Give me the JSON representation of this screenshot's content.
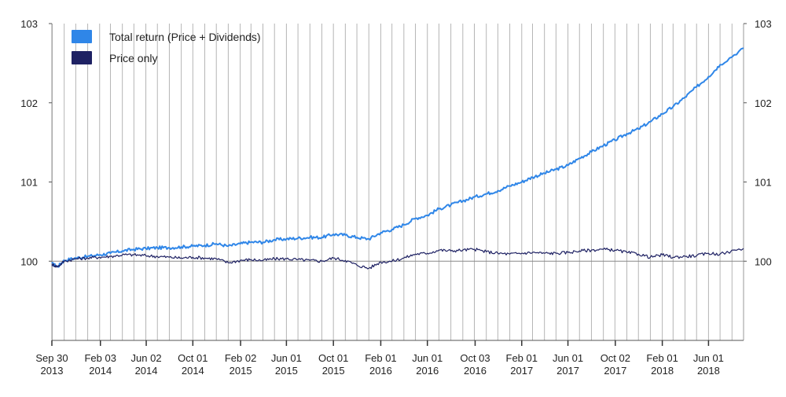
{
  "chart_data": {
    "type": "line",
    "title": "",
    "xlabel": "",
    "ylabel": "",
    "ylim": [
      99,
      103
    ],
    "y_ticks": [
      100,
      101,
      102,
      103
    ],
    "x_range": [
      "2013-09-30",
      "2018-08-31"
    ],
    "x_tick_labels": [
      {
        "date": "2013-09-30",
        "line1": "Sep 30",
        "line2": "2013"
      },
      {
        "date": "2014-02-03",
        "line1": "Feb 03",
        "line2": "2014"
      },
      {
        "date": "2014-06-02",
        "line1": "Jun 02",
        "line2": "2014"
      },
      {
        "date": "2014-10-01",
        "line1": "Oct 01",
        "line2": "2014"
      },
      {
        "date": "2015-02-02",
        "line1": "Feb 02",
        "line2": "2015"
      },
      {
        "date": "2015-06-01",
        "line1": "Jun 01",
        "line2": "2015"
      },
      {
        "date": "2015-10-01",
        "line1": "Oct 01",
        "line2": "2015"
      },
      {
        "date": "2016-02-01",
        "line1": "Feb 01",
        "line2": "2016"
      },
      {
        "date": "2016-06-01",
        "line1": "Jun 01",
        "line2": "2016"
      },
      {
        "date": "2016-10-03",
        "line1": "Oct 03",
        "line2": "2016"
      },
      {
        "date": "2017-02-01",
        "line1": "Feb 01",
        "line2": "2017"
      },
      {
        "date": "2017-06-01",
        "line1": "Jun 01",
        "line2": "2017"
      },
      {
        "date": "2017-10-02",
        "line1": "Oct 02",
        "line2": "2017"
      },
      {
        "date": "2018-02-01",
        "line1": "Feb 01",
        "line2": "2018"
      },
      {
        "date": "2018-06-01",
        "line1": "Jun 01",
        "line2": "2018"
      }
    ],
    "grid": "vertical-monthly",
    "legend_position": "top-left",
    "series": [
      {
        "name": "Total return (Price + Dividends)",
        "color": "#2f86e8",
        "points": [
          [
            "2013-09-30",
            99.97
          ],
          [
            "2013-10-15",
            99.93
          ],
          [
            "2013-11-01",
            100.01
          ],
          [
            "2013-12-01",
            100.04
          ],
          [
            "2014-01-01",
            100.06
          ],
          [
            "2014-02-01",
            100.08
          ],
          [
            "2014-03-01",
            100.1
          ],
          [
            "2014-04-01",
            100.13
          ],
          [
            "2014-05-01",
            100.15
          ],
          [
            "2014-06-01",
            100.16
          ],
          [
            "2014-07-01",
            100.17
          ],
          [
            "2014-08-01",
            100.17
          ],
          [
            "2014-09-01",
            100.18
          ],
          [
            "2014-10-01",
            100.19
          ],
          [
            "2014-11-01",
            100.2
          ],
          [
            "2014-12-01",
            100.22
          ],
          [
            "2015-01-01",
            100.19
          ],
          [
            "2015-02-01",
            100.22
          ],
          [
            "2015-03-01",
            100.24
          ],
          [
            "2015-04-01",
            100.24
          ],
          [
            "2015-05-01",
            100.27
          ],
          [
            "2015-06-01",
            100.28
          ],
          [
            "2015-07-01",
            100.29
          ],
          [
            "2015-08-01",
            100.3
          ],
          [
            "2015-09-01",
            100.3
          ],
          [
            "2015-10-01",
            100.34
          ],
          [
            "2015-11-01",
            100.33
          ],
          [
            "2015-12-01",
            100.3
          ],
          [
            "2016-01-01",
            100.28
          ],
          [
            "2016-02-01",
            100.36
          ],
          [
            "2016-03-01",
            100.4
          ],
          [
            "2016-04-01",
            100.46
          ],
          [
            "2016-05-01",
            100.54
          ],
          [
            "2016-06-01",
            100.58
          ],
          [
            "2016-07-01",
            100.66
          ],
          [
            "2016-08-01",
            100.71
          ],
          [
            "2016-09-01",
            100.76
          ],
          [
            "2016-10-01",
            100.81
          ],
          [
            "2016-11-01",
            100.85
          ],
          [
            "2016-12-01",
            100.89
          ],
          [
            "2017-01-01",
            100.95
          ],
          [
            "2017-02-01",
            101.0
          ],
          [
            "2017-03-01",
            101.06
          ],
          [
            "2017-04-01",
            101.11
          ],
          [
            "2017-05-01",
            101.16
          ],
          [
            "2017-06-01",
            101.21
          ],
          [
            "2017-07-01",
            101.3
          ],
          [
            "2017-08-01",
            101.38
          ],
          [
            "2017-09-01",
            101.46
          ],
          [
            "2017-10-01",
            101.53
          ],
          [
            "2017-11-01",
            101.61
          ],
          [
            "2017-12-01",
            101.67
          ],
          [
            "2018-01-01",
            101.76
          ],
          [
            "2018-02-01",
            101.86
          ],
          [
            "2018-03-01",
            101.95
          ],
          [
            "2018-04-01",
            102.07
          ],
          [
            "2018-05-01",
            102.2
          ],
          [
            "2018-06-01",
            102.33
          ],
          [
            "2018-07-01",
            102.48
          ],
          [
            "2018-08-31",
            102.69
          ]
        ]
      },
      {
        "name": "Price only",
        "color": "#1e2163",
        "points": [
          [
            "2013-09-30",
            99.96
          ],
          [
            "2013-10-15",
            99.93
          ],
          [
            "2013-11-01",
            100.0
          ],
          [
            "2013-12-01",
            100.03
          ],
          [
            "2014-01-01",
            100.04
          ],
          [
            "2014-02-01",
            100.05
          ],
          [
            "2014-03-01",
            100.06
          ],
          [
            "2014-04-01",
            100.08
          ],
          [
            "2014-05-01",
            100.08
          ],
          [
            "2014-06-01",
            100.07
          ],
          [
            "2014-07-01",
            100.06
          ],
          [
            "2014-08-01",
            100.05
          ],
          [
            "2014-09-01",
            100.04
          ],
          [
            "2014-10-01",
            100.05
          ],
          [
            "2014-11-01",
            100.04
          ],
          [
            "2014-12-01",
            100.03
          ],
          [
            "2015-01-01",
            99.98
          ],
          [
            "2015-02-01",
            100.01
          ],
          [
            "2015-03-01",
            100.02
          ],
          [
            "2015-04-01",
            100.01
          ],
          [
            "2015-05-01",
            100.03
          ],
          [
            "2015-06-01",
            100.03
          ],
          [
            "2015-07-01",
            100.02
          ],
          [
            "2015-08-01",
            100.01
          ],
          [
            "2015-09-01",
            100.0
          ],
          [
            "2015-10-01",
            100.04
          ],
          [
            "2015-11-01",
            100.01
          ],
          [
            "2015-12-01",
            99.95
          ],
          [
            "2016-01-01",
            99.91
          ],
          [
            "2016-02-01",
            99.99
          ],
          [
            "2016-03-01",
            100.0
          ],
          [
            "2016-04-01",
            100.04
          ],
          [
            "2016-05-01",
            100.09
          ],
          [
            "2016-06-01",
            100.1
          ],
          [
            "2016-07-01",
            100.14
          ],
          [
            "2016-08-01",
            100.13
          ],
          [
            "2016-09-01",
            100.14
          ],
          [
            "2016-10-01",
            100.15
          ],
          [
            "2016-11-01",
            100.12
          ],
          [
            "2016-12-01",
            100.1
          ],
          [
            "2017-01-01",
            100.09
          ],
          [
            "2017-02-01",
            100.1
          ],
          [
            "2017-03-01",
            100.11
          ],
          [
            "2017-04-01",
            100.1
          ],
          [
            "2017-05-01",
            100.1
          ],
          [
            "2017-06-01",
            100.11
          ],
          [
            "2017-07-01",
            100.13
          ],
          [
            "2017-08-01",
            100.14
          ],
          [
            "2017-09-01",
            100.15
          ],
          [
            "2017-10-01",
            100.14
          ],
          [
            "2017-11-01",
            100.11
          ],
          [
            "2017-12-01",
            100.09
          ],
          [
            "2018-01-01",
            100.05
          ],
          [
            "2018-02-01",
            100.08
          ],
          [
            "2018-03-01",
            100.05
          ],
          [
            "2018-04-01",
            100.06
          ],
          [
            "2018-05-01",
            100.07
          ],
          [
            "2018-06-01",
            100.1
          ],
          [
            "2018-07-01",
            100.09
          ],
          [
            "2018-08-31",
            100.16
          ]
        ]
      }
    ]
  }
}
